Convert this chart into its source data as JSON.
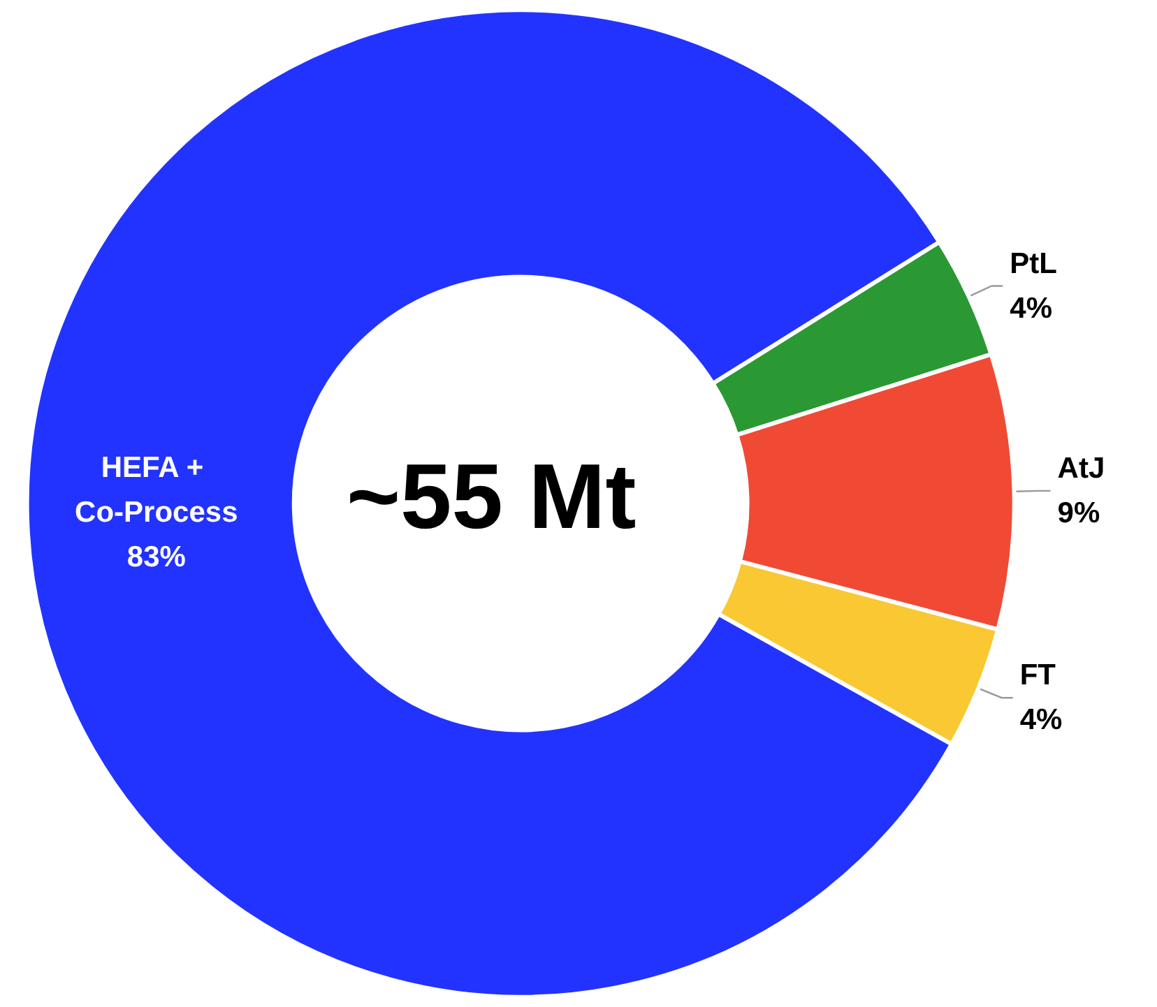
{
  "chart_data": {
    "type": "donut",
    "categories": [
      "PtL",
      "AtJ",
      "FT",
      "HEFA + Co-Process"
    ],
    "values": [
      4,
      9,
      4,
      83
    ],
    "colors": [
      "#2a9934",
      "#f04a35",
      "#f9c832",
      "#2233ff"
    ],
    "value_labels": [
      "4%",
      "9%",
      "4%",
      "83%"
    ],
    "legend": false,
    "annotations": [
      "~55 Mt"
    ]
  }
}
